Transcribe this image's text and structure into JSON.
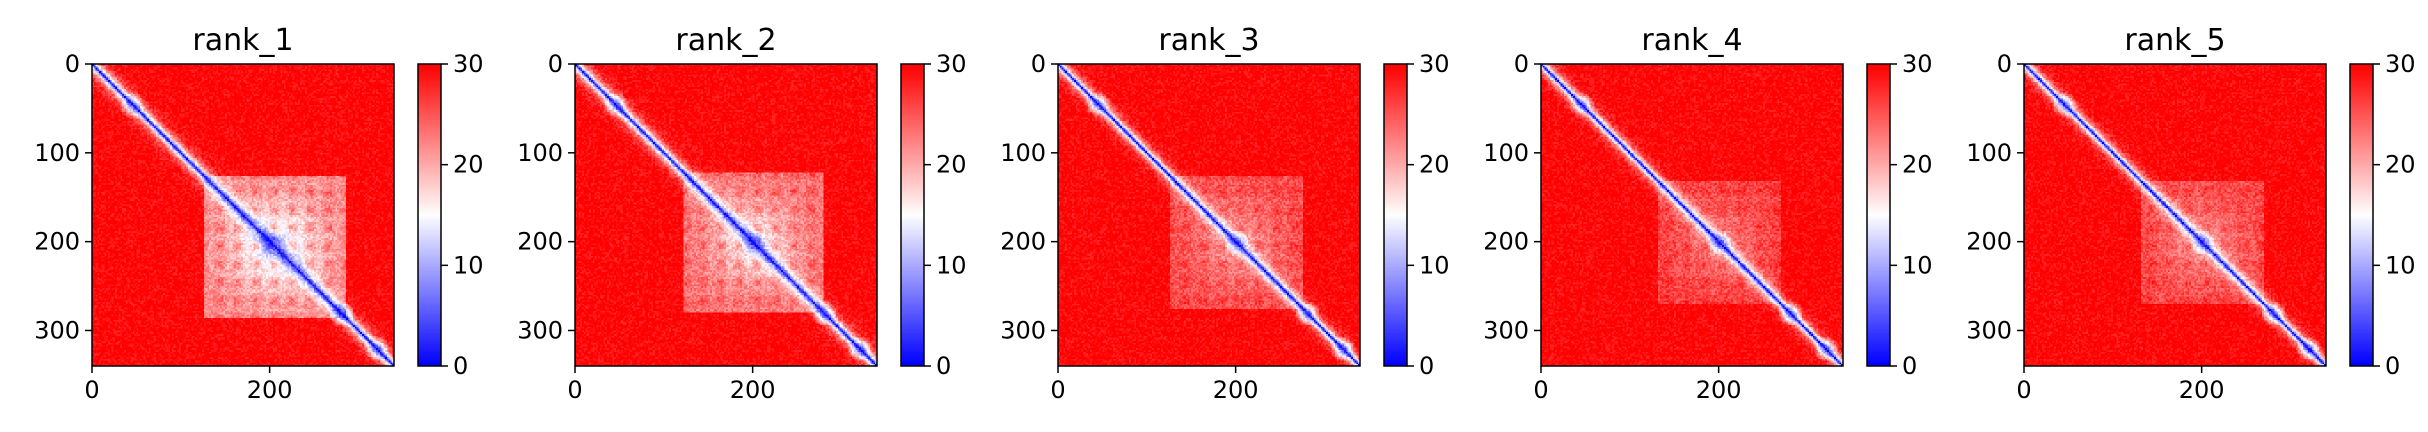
{
  "chart_data": [
    {
      "type": "heatmap",
      "title": "rank_1",
      "x_ticks": [
        "0",
        "200"
      ],
      "y_ticks": [
        "0",
        "100",
        "200",
        "300"
      ],
      "xlim": [
        0,
        340
      ],
      "ylim": [
        340,
        0
      ],
      "colorbar": {
        "range": [
          0,
          30
        ],
        "ticks": [
          "0",
          "10",
          "20",
          "30"
        ],
        "colormap": "bwr"
      },
      "pattern": {
        "diag_sigma": 7,
        "block_center": 205,
        "block_half": 80,
        "block_strength": 0.55
      }
    },
    {
      "type": "heatmap",
      "title": "rank_2",
      "x_ticks": [
        "0",
        "200"
      ],
      "y_ticks": [
        "0",
        "100",
        "200",
        "300"
      ],
      "xlim": [
        0,
        340
      ],
      "ylim": [
        340,
        0
      ],
      "colorbar": {
        "range": [
          0,
          30
        ],
        "ticks": [
          "0",
          "10",
          "20",
          "30"
        ],
        "colormap": "bwr"
      },
      "pattern": {
        "diag_sigma": 7,
        "block_center": 200,
        "block_half": 80,
        "block_strength": 0.45
      }
    },
    {
      "type": "heatmap",
      "title": "rank_3",
      "x_ticks": [
        "0",
        "200"
      ],
      "y_ticks": [
        "0",
        "100",
        "200",
        "300"
      ],
      "xlim": [
        0,
        340
      ],
      "ylim": [
        340,
        0
      ],
      "colorbar": {
        "range": [
          0,
          30
        ],
        "ticks": [
          "0",
          "10",
          "20",
          "30"
        ],
        "colormap": "bwr"
      },
      "pattern": {
        "diag_sigma": 6,
        "block_center": 200,
        "block_half": 75,
        "block_strength": 0.3
      }
    },
    {
      "type": "heatmap",
      "title": "rank_4",
      "x_ticks": [
        "0",
        "200"
      ],
      "y_ticks": [
        "0",
        "100",
        "200",
        "300"
      ],
      "xlim": [
        0,
        340
      ],
      "ylim": [
        340,
        0
      ],
      "colorbar": {
        "range": [
          0,
          30
        ],
        "ticks": [
          "0",
          "10",
          "20",
          "30"
        ],
        "colormap": "bwr"
      },
      "pattern": {
        "diag_sigma": 6,
        "block_center": 200,
        "block_half": 70,
        "block_strength": 0.25
      }
    },
    {
      "type": "heatmap",
      "title": "rank_5",
      "x_ticks": [
        "0",
        "200"
      ],
      "y_ticks": [
        "0",
        "100",
        "200",
        "300"
      ],
      "xlim": [
        0,
        340
      ],
      "ylim": [
        340,
        0
      ],
      "colorbar": {
        "range": [
          0,
          30
        ],
        "ticks": [
          "0",
          "10",
          "20",
          "30"
        ],
        "colormap": "bwr"
      },
      "pattern": {
        "diag_sigma": 6,
        "block_center": 200,
        "block_half": 70,
        "block_strength": 0.28
      }
    }
  ]
}
